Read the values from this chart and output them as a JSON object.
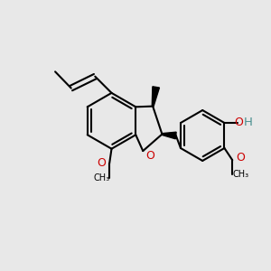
{
  "bg_color": "#e8e8e8",
  "bond_color": "#000000",
  "O_color": "#cc0000",
  "OH_color": "#4a9090",
  "figsize": [
    3.0,
    3.0
  ],
  "dpi": 100,
  "xlim": [
    0,
    10
  ],
  "ylim": [
    0,
    10
  ]
}
